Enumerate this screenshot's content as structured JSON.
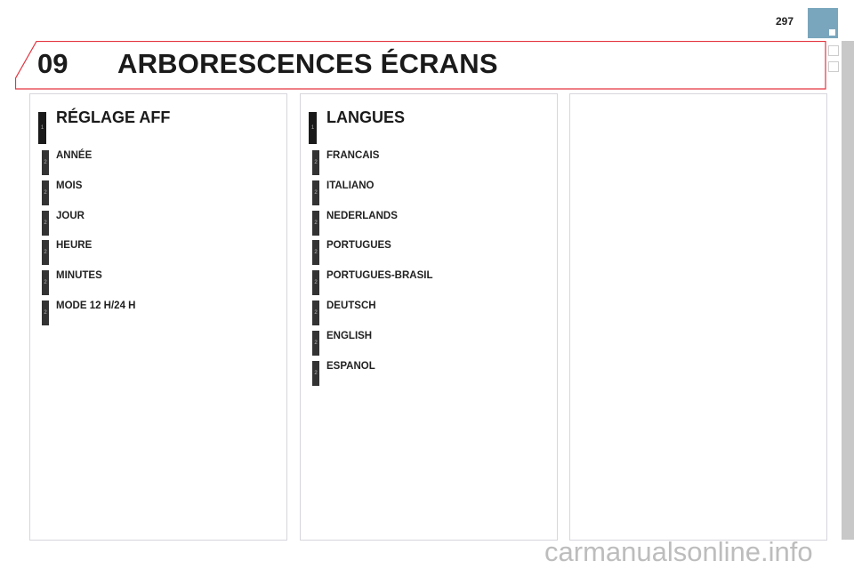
{
  "page_number": "297",
  "header": {
    "chapter": "09",
    "title": "ARBORESCENCES ÉCRANS",
    "accent_color": "#e3343f",
    "tab_color": "#7aa6bd"
  },
  "panels": [
    {
      "heading": {
        "level": "1",
        "label": "RÉGLAGE AFF"
      },
      "items": [
        {
          "level": "2",
          "label": "ANNÉE"
        },
        {
          "level": "2",
          "label": "MOIS"
        },
        {
          "level": "2",
          "label": "JOUR"
        },
        {
          "level": "2",
          "label": "HEURE"
        },
        {
          "level": "2",
          "label": "MINUTES"
        },
        {
          "level": "2",
          "label": "MODE 12 H/24 H"
        }
      ]
    },
    {
      "heading": {
        "level": "1",
        "label": "LANGUES"
      },
      "items": [
        {
          "level": "2",
          "label": "FRANCAIS"
        },
        {
          "level": "2",
          "label": "ITALIANO"
        },
        {
          "level": "2",
          "label": "NEDERLANDS"
        },
        {
          "level": "2",
          "label": "PORTUGUES"
        },
        {
          "level": "2",
          "label": "PORTUGUES-BRASIL"
        },
        {
          "level": "2",
          "label": "DEUTSCH"
        },
        {
          "level": "2",
          "label": "ENGLISH"
        },
        {
          "level": "2",
          "label": "ESPANOL"
        }
      ]
    }
  ],
  "watermark": "carmanualsonline.info"
}
